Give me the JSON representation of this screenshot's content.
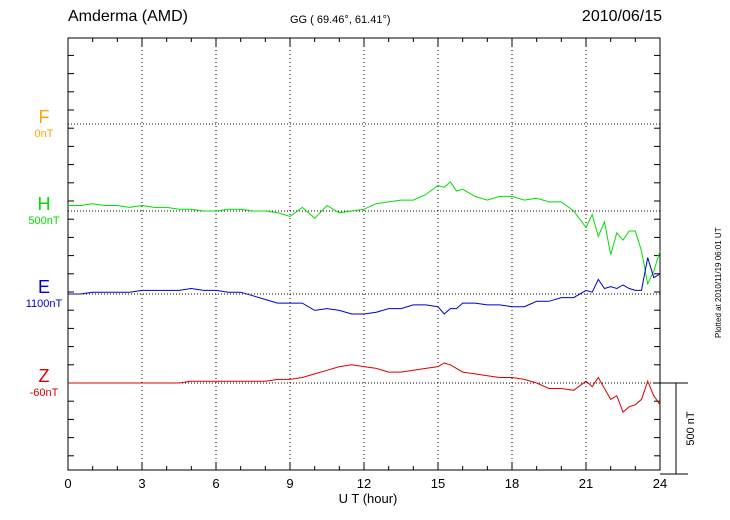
{
  "header": {
    "station": "Amderma (AMD)",
    "coords": "GG ( 69.46°,  61.41°)",
    "date": "2010/06/15"
  },
  "scale_label": "500 nT",
  "plotted_note": "Plotted at 2010/11/19 06:01  UT",
  "components": [
    {
      "name": "F",
      "baseline": "0nT",
      "color": "#ffa500"
    },
    {
      "name": "H",
      "baseline": "500nT",
      "color": "#00dd00"
    },
    {
      "name": "E",
      "baseline": "1100nT",
      "color": "#0000cc"
    },
    {
      "name": "Z",
      "baseline": "-60nT",
      "color": "#dd0000"
    }
  ],
  "chart_data": {
    "type": "line",
    "title": "Amderma (AMD)",
    "xlabel": "U T (hour)",
    "x_ticks": [
      "0",
      "3",
      "6",
      "9",
      "12",
      "15",
      "18",
      "21",
      "24"
    ],
    "xlim": [
      0,
      24
    ],
    "ylim_panel_nT": [
      -875,
      2625
    ],
    "scale_bar_nT": 500,
    "grid": true,
    "series": [
      {
        "name": "F",
        "color": "#ffa500",
        "values": []
      },
      {
        "name": "H",
        "color": "#00dd00",
        "x": [
          0,
          0.5,
          1,
          1.5,
          2,
          2.5,
          3,
          3.5,
          4,
          4.5,
          5,
          5.5,
          6,
          6.5,
          7,
          7.5,
          8,
          8.5,
          9,
          9.5,
          10,
          10.5,
          11,
          11.5,
          12,
          12.5,
          13,
          13.5,
          14,
          14.5,
          15,
          15.25,
          15.5,
          15.75,
          16,
          16.5,
          17,
          17.5,
          18,
          18.5,
          19,
          19.5,
          20,
          20.5,
          21,
          21.25,
          21.5,
          21.75,
          22,
          22.25,
          22.5,
          22.75,
          23,
          23.25,
          23.5,
          23.75,
          24
        ],
        "values": [
          30,
          30,
          40,
          30,
          30,
          20,
          30,
          20,
          20,
          10,
          10,
          0,
          0,
          10,
          10,
          0,
          0,
          -10,
          -30,
          20,
          -40,
          30,
          -10,
          0,
          10,
          40,
          50,
          60,
          60,
          90,
          140,
          130,
          160,
          110,
          120,
          80,
          60,
          80,
          80,
          60,
          70,
          50,
          50,
          0,
          -90,
          -20,
          -140,
          -60,
          -240,
          -120,
          -160,
          -110,
          -110,
          -220,
          -400,
          -330,
          -220
        ]
      },
      {
        "name": "E",
        "color": "#0000cc",
        "x": [
          0,
          0.5,
          1,
          1.5,
          2,
          2.5,
          3,
          3.5,
          4,
          4.5,
          5,
          5.5,
          6,
          6.5,
          7,
          7.5,
          8,
          8.5,
          9,
          9.5,
          10,
          10.5,
          11,
          11.5,
          12,
          12.5,
          13,
          13.5,
          14,
          14.5,
          15,
          15.25,
          15.5,
          15.75,
          16,
          16.5,
          17,
          17.5,
          18,
          18.5,
          19,
          19.5,
          20,
          20.5,
          21,
          21.25,
          21.5,
          21.75,
          22,
          22.25,
          22.5,
          22.75,
          23,
          23.25,
          23.5,
          23.75,
          24
        ],
        "values": [
          0,
          0,
          10,
          10,
          10,
          10,
          20,
          20,
          20,
          20,
          30,
          20,
          20,
          10,
          10,
          -10,
          -30,
          -50,
          -50,
          -50,
          -90,
          -80,
          -90,
          -110,
          -110,
          -100,
          -80,
          -80,
          -60,
          -60,
          -70,
          -110,
          -80,
          -80,
          -50,
          -50,
          -60,
          -60,
          -70,
          -70,
          -40,
          -40,
          -20,
          -20,
          20,
          10,
          80,
          30,
          40,
          30,
          50,
          30,
          20,
          20,
          200,
          90,
          110
        ]
      },
      {
        "name": "Z",
        "color": "#dd0000",
        "x": [
          0,
          0.5,
          1,
          1.5,
          2,
          2.5,
          3,
          3.5,
          4,
          4.5,
          5,
          5.5,
          6,
          6.5,
          7,
          7.5,
          8,
          8.5,
          9,
          9.5,
          10,
          10.5,
          11,
          11.5,
          12,
          12.5,
          13,
          13.5,
          14,
          14.5,
          15,
          15.25,
          15.5,
          15.75,
          16,
          16.5,
          17,
          17.5,
          18,
          18.5,
          19,
          19.5,
          20,
          20.5,
          21,
          21.25,
          21.5,
          21.75,
          22,
          22.25,
          22.5,
          22.75,
          23,
          23.25,
          23.5,
          23.75,
          24
        ],
        "values": [
          0,
          0,
          0,
          0,
          0,
          0,
          0,
          0,
          0,
          0,
          10,
          10,
          10,
          10,
          10,
          10,
          10,
          20,
          20,
          30,
          50,
          70,
          90,
          100,
          90,
          80,
          60,
          60,
          70,
          80,
          90,
          110,
          100,
          80,
          60,
          50,
          40,
          30,
          30,
          20,
          0,
          -30,
          -30,
          -40,
          10,
          -20,
          30,
          -30,
          -90,
          -70,
          -160,
          -130,
          -120,
          -90,
          10,
          -70,
          -120
        ]
      }
    ]
  }
}
